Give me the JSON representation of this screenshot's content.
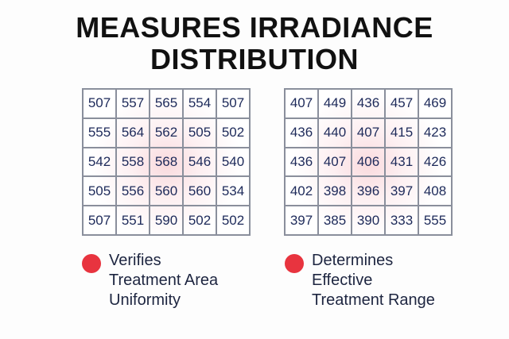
{
  "title": [
    "MEASURES IRRADIANCE",
    "DISTRIBUTION"
  ],
  "grids": [
    {
      "rows": [
        [
          507,
          557,
          565,
          554,
          507
        ],
        [
          555,
          564,
          562,
          505,
          502
        ],
        [
          542,
          558,
          568,
          546,
          540
        ],
        [
          505,
          556,
          560,
          560,
          534
        ],
        [
          507,
          551,
          590,
          502,
          502
        ]
      ]
    },
    {
      "rows": [
        [
          407,
          449,
          436,
          457,
          469
        ],
        [
          436,
          440,
          407,
          415,
          423
        ],
        [
          436,
          407,
          406,
          431,
          426
        ],
        [
          402,
          398,
          396,
          397,
          408
        ],
        [
          397,
          385,
          390,
          333,
          555
        ]
      ]
    }
  ],
  "bullets": [
    {
      "lines": [
        "Verifies",
        "Treatment Area",
        "Uniformity"
      ]
    },
    {
      "lines": [
        "Determines",
        "Effective",
        "Treatment Range"
      ]
    }
  ]
}
